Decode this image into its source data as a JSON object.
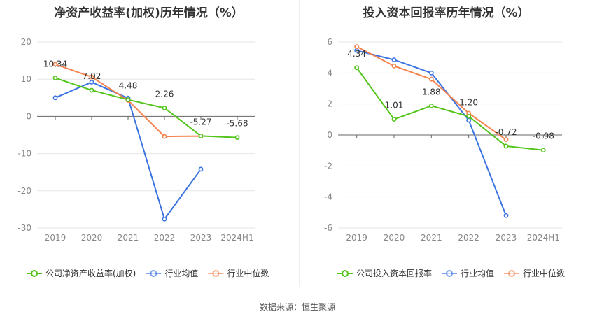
{
  "footer": {
    "source": "数据来源：恒生聚源"
  },
  "charts": {
    "roe": "净资产收益率(加权)历年情况（%）",
    "roi": "投入资本回报率历年情况（%）"
  },
  "chart_data": [
    {
      "type": "line",
      "title": "净资产收益率(加权)历年情况（%）",
      "categories": [
        "2019",
        "2020",
        "2021",
        "2022",
        "2023",
        "2024H1"
      ],
      "ylim": [
        -30,
        20
      ],
      "yticks": [
        20,
        10,
        0,
        -10,
        -20,
        -30
      ],
      "grid": true,
      "legend_position": "bottom",
      "series": [
        {
          "name": "公司净资产收益率(加权)",
          "color": "#52c41a",
          "values": [
            10.34,
            7.02,
            4.48,
            2.26,
            -5.27,
            -5.68
          ],
          "labels": [
            "10.34",
            "7.02",
            "4.48",
            "2.26",
            "-5.27",
            "-5.68"
          ]
        },
        {
          "name": "行业均值",
          "color": "#3b73e0",
          "values": [
            5.0,
            9.2,
            4.9,
            -27.6,
            -14.2,
            null
          ]
        },
        {
          "name": "行业中位数",
          "color": "#f5834f",
          "values": [
            14.0,
            10.6,
            4.3,
            -5.4,
            -5.3,
            null
          ]
        }
      ]
    },
    {
      "type": "line",
      "title": "投入资本回报率历年情况（%）",
      "categories": [
        "2019",
        "2020",
        "2021",
        "2022",
        "2023",
        "2024H1"
      ],
      "ylim": [
        -6,
        6
      ],
      "yticks": [
        6,
        4,
        2,
        0,
        -2,
        -4,
        -6
      ],
      "grid": true,
      "legend_position": "bottom",
      "series": [
        {
          "name": "公司投入资本回报率",
          "color": "#52c41a",
          "values": [
            4.34,
            1.01,
            1.88,
            1.2,
            -0.72,
            -0.98
          ],
          "labels": [
            "4.34",
            "1.01",
            "1.88",
            "1.20",
            "-0.72",
            "-0.98"
          ]
        },
        {
          "name": "行业均值",
          "color": "#3b73e0",
          "values": [
            5.45,
            4.85,
            4.0,
            0.95,
            -5.2,
            null
          ]
        },
        {
          "name": "行业中位数",
          "color": "#f5834f",
          "values": [
            5.7,
            4.45,
            3.6,
            1.4,
            -0.3,
            null
          ]
        }
      ]
    }
  ]
}
